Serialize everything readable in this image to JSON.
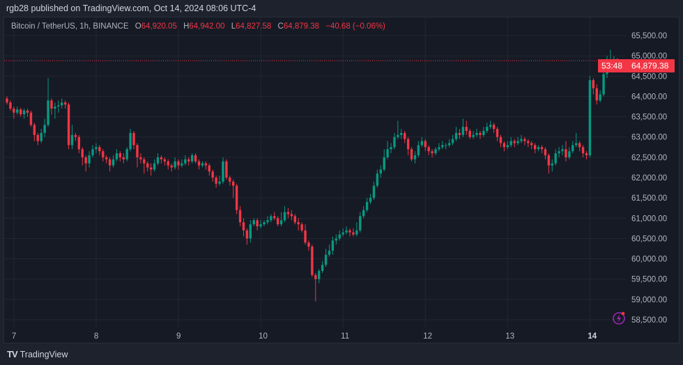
{
  "header": {
    "published": "rgb28 published on TradingView.com, Oct 14, 2024 08:06 UTC-4"
  },
  "legend": {
    "symbol": "Bitcoin / TetherUS, 1h, BINANCE",
    "o_label": "O",
    "o": "64,920.05",
    "h_label": "H",
    "h": "64,942.00",
    "l_label": "L",
    "l": "64,827.58",
    "c_label": "C",
    "c": "64,879.38",
    "change": "−40.68 (−0.06%)"
  },
  "price_label": {
    "price": "64,879.38",
    "countdown": "53:48"
  },
  "footer": {
    "brand": "TradingView",
    "logo_icon": "tradingview-logo-icon"
  },
  "colors": {
    "up": "#089981",
    "down": "#f23645",
    "background": "#161a25",
    "grid": "#232733",
    "accent_icon": "#9c27b0"
  },
  "chart_data": {
    "type": "candlestick",
    "interval": "1h",
    "title": "Bitcoin / TetherUS, 1h, BINANCE",
    "ylim": [
      58300,
      65700
    ],
    "grid": true,
    "y_ticks": [
      "65,500.00",
      "65,000.00",
      "64,500.00",
      "64,000.00",
      "63,500.00",
      "63,000.00",
      "62,500.00",
      "62,000.00",
      "61,500.00",
      "61,000.00",
      "60,500.00",
      "60,000.00",
      "59,500.00",
      "59,000.00",
      "58,500.00"
    ],
    "x_ticks": [
      "7",
      "8",
      "9",
      "10",
      "11",
      "12",
      "13",
      "14"
    ],
    "first_open": 63950,
    "close": [
      63850,
      63700,
      63600,
      63680,
      63560,
      63650,
      63600,
      63300,
      63050,
      62900,
      63100,
      63300,
      63900,
      63700,
      63750,
      63780,
      63850,
      63800,
      62800,
      63050,
      63000,
      62700,
      62500,
      62350,
      62550,
      62700,
      62750,
      62650,
      62500,
      62450,
      62300,
      62450,
      62600,
      62500,
      62450,
      62700,
      63100,
      62800,
      62500,
      62450,
      62350,
      62250,
      62200,
      62350,
      62500,
      62450,
      62400,
      62300,
      62250,
      62400,
      62300,
      62350,
      62450,
      62400,
      62550,
      62400,
      62300,
      62350,
      62300,
      62150,
      62000,
      61850,
      61900,
      62400,
      62000,
      61900,
      61800,
      61200,
      60900,
      60700,
      60500,
      60850,
      60950,
      60800,
      60850,
      60900,
      60950,
      61050,
      61000,
      60850,
      60950,
      61150,
      61100,
      61050,
      60900,
      60850,
      60700,
      60400,
      60300,
      59600,
      59500,
      59700,
      59850,
      60100,
      60200,
      60450,
      60500,
      60600,
      60650,
      60700,
      60650,
      60600,
      60700,
      61050,
      61200,
      61400,
      61500,
      61800,
      62100,
      62200,
      62500,
      62700,
      62750,
      63000,
      63050,
      63100,
      62950,
      62700,
      62450,
      62550,
      62800,
      62900,
      62750,
      62650,
      62600,
      62700,
      62750,
      62800,
      62800,
      62850,
      62950,
      63100,
      63050,
      63250,
      63150,
      63000,
      63050,
      63100,
      63050,
      63150,
      63250,
      63300,
      63200,
      63000,
      62850,
      62750,
      62800,
      62900,
      62850,
      62900,
      62950,
      62900,
      62850,
      62800,
      62700,
      62750,
      62700,
      62550,
      62300,
      62350,
      62600,
      62650,
      62700,
      62500,
      62650,
      62800,
      62850,
      62750,
      62600,
      62550,
      64400,
      64200,
      63900,
      64050,
      64550,
      64800,
      64900,
      64920.05,
      64879.38
    ],
    "high": [
      64000,
      63900,
      63750,
      63750,
      63720,
      63700,
      63700,
      63650,
      63350,
      63100,
      63200,
      63450,
      64450,
      63950,
      63850,
      63900,
      63950,
      63900,
      63850,
      63300,
      63100,
      63050,
      62750,
      62550,
      62650,
      62800,
      62850,
      62800,
      62700,
      62550,
      62500,
      62550,
      62700,
      62650,
      62600,
      62750,
      63200,
      63150,
      62850,
      62600,
      62500,
      62400,
      62350,
      62450,
      62600,
      62550,
      62500,
      62450,
      62350,
      62500,
      62450,
      62450,
      62550,
      62500,
      62600,
      62600,
      62450,
      62400,
      62400,
      62350,
      62200,
      62050,
      62050,
      62500,
      62450,
      62050,
      61950,
      61850,
      61300,
      61000,
      60750,
      60950,
      61000,
      61000,
      60950,
      60950,
      61050,
      61100,
      61150,
      61050,
      61150,
      61300,
      61250,
      61200,
      61100,
      61000,
      60900,
      60850,
      60450,
      60350,
      59650,
      59750,
      59950,
      60250,
      60350,
      60550,
      60600,
      60700,
      60750,
      60800,
      60750,
      60750,
      60900,
      61150,
      61300,
      61500,
      61600,
      61900,
      62200,
      62300,
      62700,
      62900,
      62850,
      63100,
      63400,
      63200,
      63150,
      63000,
      62750,
      62650,
      62900,
      63000,
      62950,
      62800,
      62700,
      62750,
      62850,
      62900,
      62850,
      62950,
      63050,
      63250,
      63200,
      63450,
      63400,
      63200,
      63150,
      63200,
      63150,
      63250,
      63350,
      63400,
      63350,
      63250,
      63050,
      62900,
      62900,
      63000,
      62950,
      63000,
      63050,
      63000,
      62950,
      62900,
      62850,
      62800,
      62800,
      62750,
      62600,
      62450,
      62700,
      62750,
      62800,
      62900,
      62750,
      62900,
      63100,
      62900,
      62800,
      62650,
      64500,
      64450,
      64300,
      64150,
      64700,
      65000,
      65150,
      65000,
      64942
    ],
    "low": [
      63800,
      63650,
      63450,
      63550,
      63500,
      63450,
      63500,
      63250,
      62900,
      62800,
      62850,
      63000,
      63250,
      63550,
      63450,
      63600,
      63700,
      63700,
      62700,
      62700,
      62900,
      62600,
      62300,
      62150,
      62250,
      62500,
      62600,
      62550,
      62400,
      62350,
      62150,
      62250,
      62400,
      62400,
      62350,
      62400,
      62650,
      62700,
      62250,
      62350,
      62100,
      62150,
      62050,
      62150,
      62300,
      62350,
      62300,
      62200,
      62150,
      62200,
      62200,
      62250,
      62300,
      62300,
      62350,
      62350,
      62200,
      62250,
      62200,
      62050,
      61900,
      61750,
      61800,
      61850,
      61950,
      61800,
      61500,
      61100,
      60800,
      60550,
      60350,
      60400,
      60800,
      60700,
      60750,
      60800,
      60850,
      60900,
      60950,
      60800,
      60800,
      60900,
      61000,
      60950,
      60850,
      60700,
      60650,
      60350,
      60200,
      59550,
      58950,
      59400,
      59650,
      59800,
      60050,
      60100,
      60350,
      60450,
      60550,
      60600,
      60550,
      60550,
      60550,
      60650,
      61000,
      61150,
      61350,
      61450,
      61750,
      62000,
      62150,
      62450,
      62600,
      62700,
      62950,
      62950,
      62850,
      62550,
      62400,
      62350,
      62500,
      62750,
      62650,
      62550,
      62500,
      62550,
      62650,
      62700,
      62700,
      62750,
      62800,
      62900,
      62950,
      63000,
      63050,
      62950,
      62950,
      63000,
      62950,
      63000,
      63100,
      63200,
      63100,
      62900,
      62750,
      62650,
      62700,
      62750,
      62750,
      62800,
      62850,
      62800,
      62750,
      62700,
      62600,
      62650,
      62600,
      62450,
      62100,
      62150,
      62300,
      62500,
      62550,
      62400,
      62450,
      62600,
      62750,
      62650,
      62500,
      62450,
      62500,
      64050,
      63800,
      63850,
      64000,
      64450,
      64650,
      64850,
      64827.58
    ]
  }
}
